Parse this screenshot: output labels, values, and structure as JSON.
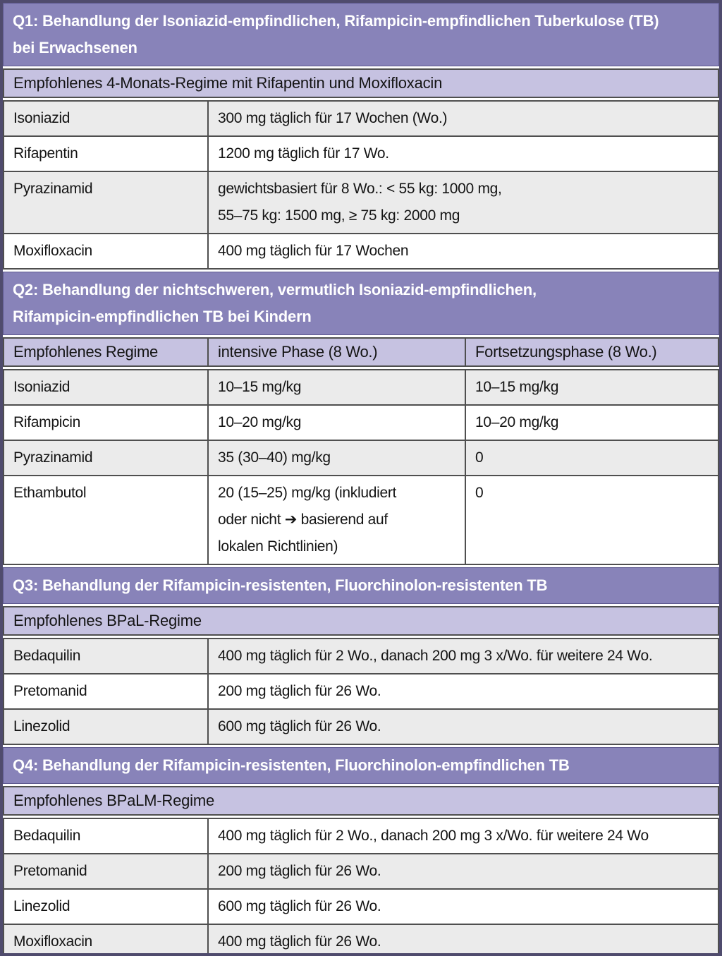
{
  "colors": {
    "section_header_bg": "#8883b9",
    "section_header_text": "#ffffff",
    "subheader_bg": "#c6c2e1",
    "row_gray_bg": "#ebebeb",
    "row_white_bg": "#ffffff",
    "grid_line": "#4f4f4f",
    "outer_border": "#4f4b6d",
    "body_text": "#141414"
  },
  "sections": [
    {
      "title": "Q1: Behandlung der Isoniazid-empfindlichen, Rifampicin-empfindlichen Tuberkulose (TB)\nbei Erwachsenen",
      "subtitle": "Empfohlenes 4-Monats-Regime mit Rifapentin und Moxifloxacin",
      "rows": [
        {
          "drug": "Isoniazid",
          "dose": "300 mg täglich für 17 Wochen (Wo.)"
        },
        {
          "drug": "Rifapentin",
          "dose": "1200 mg täglich für 17 Wo."
        },
        {
          "drug": "Pyrazinamid",
          "dose": "gewichtsbasiert für 8 Wo.: < 55 kg: 1000 mg,\n55–75 kg: 1500 mg, ≥ 75 kg: 2000 mg"
        },
        {
          "drug": "Moxifloxacin",
          "dose": "400 mg täglich für 17 Wochen"
        }
      ]
    },
    {
      "title": "Q2: Behandlung der nichtschweren, vermutlich Isoniazid-empfindlichen,\nRifampicin-empfindlichen TB bei Kindern",
      "columns": [
        "Empfohlenes Regime",
        "intensive Phase (8 Wo.)",
        "Fortsetzungsphase (8 Wo.)"
      ],
      "rows": [
        {
          "drug": "Isoniazid",
          "intensive": "10–15 mg/kg",
          "continuation": "10–15 mg/kg"
        },
        {
          "drug": "Rifampicin",
          "intensive": "10–20 mg/kg",
          "continuation": "10–20 mg/kg"
        },
        {
          "drug": "Pyrazinamid",
          "intensive": "35 (30–40) mg/kg",
          "continuation": "0"
        },
        {
          "drug": "Ethambutol",
          "intensive": "20 (15–25) mg/kg (inkludiert\noder nicht ➔ basierend auf\nlokalen Richtlinien)",
          "continuation": "0"
        }
      ]
    },
    {
      "title": "Q3: Behandlung der Rifampicin-resistenten, Fluorchinolon-resistenten TB",
      "subtitle": "Empfohlenes BPaL-Regime",
      "rows": [
        {
          "drug": "Bedaquilin",
          "dose": "400 mg täglich für 2 Wo., danach 200 mg 3 x/Wo. für weitere 24 Wo."
        },
        {
          "drug": "Pretomanid",
          "dose": "200 mg täglich für 26 Wo."
        },
        {
          "drug": "Linezolid",
          "dose": "600 mg täglich für 26 Wo."
        }
      ]
    },
    {
      "title": "Q4: Behandlung der Rifampicin-resistenten, Fluorchinolon-empfindlichen TB",
      "subtitle": "Empfohlenes BPaLM-Regime",
      "rows": [
        {
          "drug": "Bedaquilin",
          "dose": "400 mg täglich für 2 Wo., danach 200 mg 3 x/Wo. für weitere 24 Wo"
        },
        {
          "drug": "Pretomanid",
          "dose": "200 mg täglich für 26 Wo."
        },
        {
          "drug": "Linezolid",
          "dose": "600 mg täglich für 26 Wo."
        },
        {
          "drug": "Moxifloxacin",
          "dose": "400 mg täglich für 26 Wo."
        }
      ]
    }
  ]
}
